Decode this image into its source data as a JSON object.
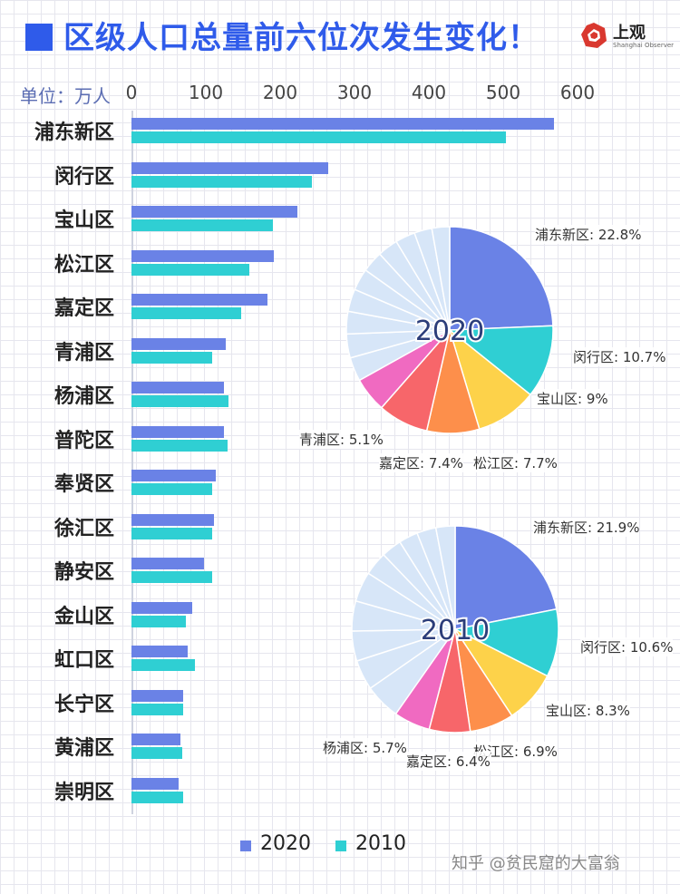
{
  "title": "区级人口总量前六位次发生变化！",
  "logo": {
    "name": "上观",
    "subtitle": "Shanghai Observer"
  },
  "unit_label": "单位：万人",
  "watermark": "知乎 @贫民窟的大富翁",
  "colors": {
    "s2020": "#6a82e6",
    "s2010": "#2fcfd3",
    "title": "#2f5bea",
    "pie_slices": [
      "#6a82e6",
      "#2fcfd3",
      "#fdd24a",
      "#fd8f4b",
      "#f7666a",
      "#f06ac1"
    ],
    "pie_other": "#d7e6f8"
  },
  "chart_data": [
    {
      "type": "bar",
      "orientation": "horizontal",
      "categories": [
        "浦东新区",
        "闵行区",
        "宝山区",
        "松江区",
        "嘉定区",
        "青浦区",
        "杨浦区",
        "普陀区",
        "奉贤区",
        "徐汇区",
        "静安区",
        "金山区",
        "虹口区",
        "长宁区",
        "黄浦区",
        "崇明区"
      ],
      "xticks": [
        "0",
        "100",
        "200",
        "300",
        "400",
        "500",
        "600"
      ],
      "xlim": [
        0,
        600
      ],
      "series": [
        {
          "name": "2020",
          "values": [
            568,
            265,
            223,
            191,
            183,
            127,
            124,
            124,
            114,
            111,
            98,
            82,
            76,
            69,
            66,
            64
          ]
        },
        {
          "name": "2010",
          "values": [
            504,
            243,
            190,
            158,
            147,
            108,
            131,
            129,
            108,
            108,
            108,
            73,
            85,
            69,
            68,
            70
          ]
        }
      ],
      "legend": "bottom-center"
    },
    {
      "type": "pie",
      "label": "2020",
      "slices": [
        {
          "label": "浦东新区: 22.8%",
          "value": 22.8
        },
        {
          "label": "闵行区: 10.7%",
          "value": 10.7
        },
        {
          "label": "宝山区: 9%",
          "value": 9.0
        },
        {
          "label": "松江区: 7.7%",
          "value": 7.7
        },
        {
          "label": "嘉定区: 7.4%",
          "value": 7.4
        },
        {
          "label": "青浦区: 5.1%",
          "value": 5.1
        }
      ],
      "other_slices": [
        3.5,
        3.5,
        3.3,
        3.3,
        3.2,
        3.1,
        3.0,
        2.9,
        2.6,
        2.6
      ]
    },
    {
      "type": "pie",
      "label": "2010",
      "slices": [
        {
          "label": "浦东新区: 21.9%",
          "value": 21.9
        },
        {
          "label": "闵行区: 10.6%",
          "value": 10.6
        },
        {
          "label": "宝山区: 8.3%",
          "value": 8.3
        },
        {
          "label": "松江区: 6.9%",
          "value": 6.9
        },
        {
          "label": "嘉定区: 6.4%",
          "value": 6.4
        },
        {
          "label": "杨浦区: 5.7%",
          "value": 5.7
        }
      ],
      "other_slices": [
        5.6,
        4.7,
        4.7,
        4.7,
        4.7,
        3.7,
        3.2,
        3.0,
        3.0,
        3.0
      ]
    }
  ]
}
